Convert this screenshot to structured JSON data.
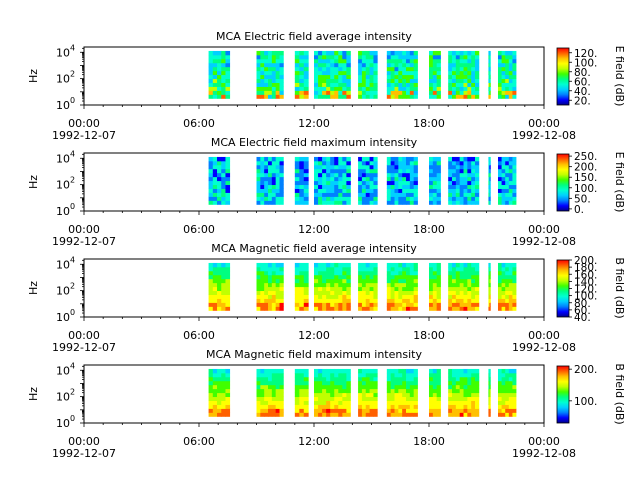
{
  "colormap": [
    "#00008b",
    "#0000ff",
    "#0080ff",
    "#00d0ff",
    "#00ffd0",
    "#00ff80",
    "#40ff00",
    "#c0ff00",
    "#ffff00",
    "#ffc000",
    "#ff6000",
    "#ff0000"
  ],
  "panel_bg": "#ffffff",
  "chart_data": [
    {
      "type": "heatmap",
      "title": "MCA  Electric field average intensity",
      "ylabel": "Hz",
      "yscale": "log",
      "y_ticks": [
        {
          "b": "10",
          "e": "0"
        },
        {
          "b": "10",
          "e": "2"
        },
        {
          "b": "10",
          "e": "4"
        }
      ],
      "ylim_exp": [
        0,
        4.4
      ],
      "x_ticks": [
        {
          "h": 0,
          "l1": "00:00",
          "l2": "1992-12-07"
        },
        {
          "h": 6,
          "l1": "06:00",
          "l2": ""
        },
        {
          "h": 12,
          "l1": "12:00",
          "l2": ""
        },
        {
          "h": 18,
          "l1": "18:00",
          "l2": ""
        },
        {
          "h": 24,
          "l1": "00:00",
          "l2": "1992-12-08"
        }
      ],
      "xlim_hours": [
        0,
        24
      ],
      "colorbar": {
        "label": "E field (dB)",
        "ticks": [
          "20.",
          "40.",
          "60.",
          "80.",
          "100.",
          "120."
        ],
        "tick_values": [
          20,
          40,
          60,
          80,
          100,
          120
        ],
        "range": [
          10,
          130
        ]
      },
      "segments_hours": [
        [
          6.5,
          7.6
        ],
        [
          9.0,
          10.4
        ],
        [
          11.0,
          11.7
        ],
        [
          12.0,
          13.9
        ],
        [
          14.3,
          15.3
        ],
        [
          15.8,
          17.4
        ],
        [
          18.0,
          18.6
        ],
        [
          19.0,
          20.6
        ],
        [
          21.1,
          21.2
        ],
        [
          21.6,
          24.5
        ]
      ],
      "level": "low"
    },
    {
      "type": "heatmap",
      "title": "MCA  Electric field maximum intensity",
      "ylabel": "Hz",
      "yscale": "log",
      "y_ticks": [
        {
          "b": "10",
          "e": "0"
        },
        {
          "b": "10",
          "e": "2"
        },
        {
          "b": "10",
          "e": "4"
        }
      ],
      "ylim_exp": [
        0,
        4.4
      ],
      "x_ticks": [
        {
          "h": 0,
          "l1": "00:00",
          "l2": "1992-12-07"
        },
        {
          "h": 6,
          "l1": "06:00",
          "l2": ""
        },
        {
          "h": 12,
          "l1": "12:00",
          "l2": ""
        },
        {
          "h": 18,
          "l1": "18:00",
          "l2": ""
        },
        {
          "h": 24,
          "l1": "00:00",
          "l2": "1992-12-08"
        }
      ],
      "xlim_hours": [
        0,
        24
      ],
      "colorbar": {
        "label": "E field (dB)",
        "ticks": [
          "0.",
          "50.",
          "100.",
          "150.",
          "200.",
          "250."
        ],
        "tick_values": [
          0,
          50,
          100,
          150,
          200,
          250
        ],
        "range": [
          -10,
          260
        ]
      },
      "segments_hours": [
        [
          6.5,
          7.6
        ],
        [
          9.0,
          10.4
        ],
        [
          11.0,
          11.7
        ],
        [
          12.0,
          13.9
        ],
        [
          14.3,
          15.3
        ],
        [
          15.8,
          17.4
        ],
        [
          18.0,
          18.6
        ],
        [
          19.0,
          20.6
        ],
        [
          21.1,
          21.2
        ],
        [
          21.6,
          24.5
        ]
      ],
      "level": "cool"
    },
    {
      "type": "heatmap",
      "title": "MCA  Magnetic field average intensity",
      "ylabel": "Hz",
      "yscale": "log",
      "y_ticks": [
        {
          "b": "10",
          "e": "0"
        },
        {
          "b": "10",
          "e": "2"
        },
        {
          "b": "10",
          "e": "4"
        }
      ],
      "ylim_exp": [
        0,
        4.4
      ],
      "x_ticks": [
        {
          "h": 0,
          "l1": "00:00",
          "l2": "1992-12-07"
        },
        {
          "h": 6,
          "l1": "06:00",
          "l2": ""
        },
        {
          "h": 12,
          "l1": "12:00",
          "l2": ""
        },
        {
          "h": 18,
          "l1": "18:00",
          "l2": ""
        },
        {
          "h": 24,
          "l1": "00:00",
          "l2": "1992-12-08"
        }
      ],
      "xlim_hours": [
        0,
        24
      ],
      "colorbar": {
        "label": "B field (dB)",
        "ticks": [
          "40.",
          "60.",
          "80.",
          "100.",
          "120.",
          "140.",
          "160.",
          "180.",
          "200."
        ],
        "tick_values": [
          40,
          60,
          80,
          100,
          120,
          140,
          160,
          180,
          200
        ],
        "range": [
          40,
          200
        ]
      },
      "segments_hours": [
        [
          6.5,
          7.6
        ],
        [
          9.0,
          10.4
        ],
        [
          11.0,
          11.7
        ],
        [
          12.0,
          13.9
        ],
        [
          14.3,
          15.3
        ],
        [
          15.8,
          17.4
        ],
        [
          18.0,
          18.6
        ],
        [
          19.0,
          20.6
        ],
        [
          21.1,
          21.2
        ],
        [
          21.6,
          24.5
        ]
      ],
      "level": "warm"
    },
    {
      "type": "heatmap",
      "title": "MCA  Magnetic field maximum intensity",
      "ylabel": "Hz",
      "yscale": "log",
      "y_ticks": [
        {
          "b": "10",
          "e": "0"
        },
        {
          "b": "10",
          "e": "2"
        },
        {
          "b": "10",
          "e": "4"
        }
      ],
      "ylim_exp": [
        0,
        4.4
      ],
      "x_ticks": [
        {
          "h": 0,
          "l1": "00:00",
          "l2": "1992-12-07"
        },
        {
          "h": 6,
          "l1": "06:00",
          "l2": ""
        },
        {
          "h": 12,
          "l1": "12:00",
          "l2": ""
        },
        {
          "h": 18,
          "l1": "18:00",
          "l2": ""
        },
        {
          "h": 24,
          "l1": "00:00",
          "l2": "1992-12-08"
        }
      ],
      "xlim_hours": [
        0,
        24
      ],
      "colorbar": {
        "label": "B field (dB)",
        "ticks": [
          "100.",
          "200."
        ],
        "tick_values": [
          100,
          200
        ],
        "range": [
          30,
          210
        ]
      },
      "segments_hours": [
        [
          6.5,
          7.6
        ],
        [
          9.0,
          10.4
        ],
        [
          11.0,
          11.7
        ],
        [
          12.0,
          13.9
        ],
        [
          14.3,
          15.3
        ],
        [
          15.8,
          17.4
        ],
        [
          18.0,
          18.6
        ],
        [
          19.0,
          20.6
        ],
        [
          21.1,
          21.2
        ],
        [
          21.6,
          24.5
        ]
      ],
      "level": "warm"
    }
  ]
}
